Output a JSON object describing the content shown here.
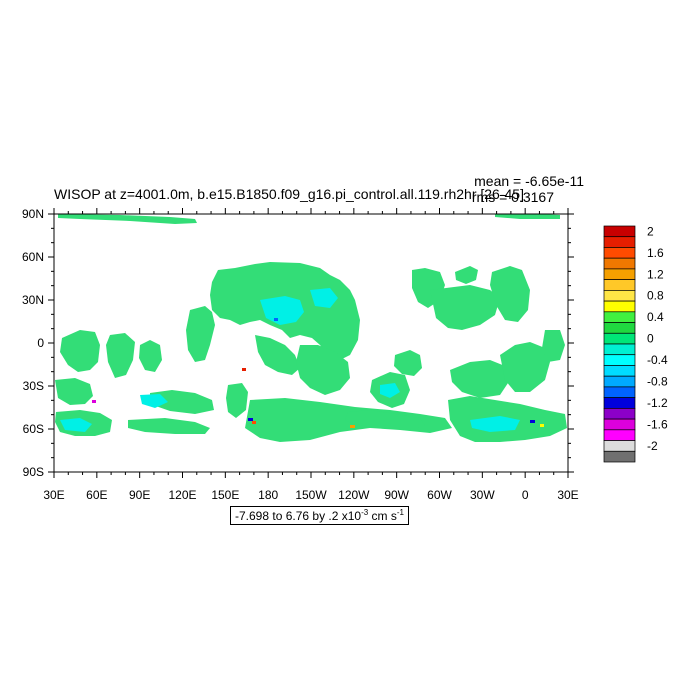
{
  "figure": {
    "title": "WISOP at z=4001.0m, b.e15.B1850.f09_g16.pi_control.all.119.rh2hr [26-45]",
    "mean_label": "mean = -6.65e-11",
    "rms_label": "rms = 0.3167",
    "range_prefix": "-7.698 to 6.76 by .2 x10",
    "range_exponent": "-3",
    "range_units": " cm s",
    "range_units_exponent": "-1"
  },
  "map": {
    "projection": "cylindrical-equidistant",
    "lon_range": [
      30,
      390
    ],
    "lat_range": [
      -90,
      90
    ],
    "lon_ticks": [
      "30E",
      "60E",
      "90E",
      "120E",
      "150E",
      "180",
      "150W",
      "120W",
      "90W",
      "60W",
      "30W",
      "0",
      "30E"
    ],
    "lat_ticks": [
      "90N",
      "60N",
      "30N",
      "0",
      "30S",
      "60S",
      "90S"
    ],
    "background": "#ffffff",
    "dominant_colors": [
      "#33dd77",
      "#00f0e6"
    ]
  },
  "colorbar": {
    "labels": [
      "2",
      "1.6",
      "1.2",
      "0.8",
      "0.4",
      "0",
      "-0.4",
      "-0.8",
      "-1.2",
      "-1.6",
      "-2"
    ],
    "colors": [
      "#c80000",
      "#e61e00",
      "#ff4b00",
      "#f07800",
      "#f5a000",
      "#ffc828",
      "#ffe646",
      "#ffff00",
      "#40f040",
      "#20d840",
      "#00e678",
      "#00f0d2",
      "#00ffff",
      "#00dcff",
      "#00aaff",
      "#0064ff",
      "#0000dc",
      "#8c00c8",
      "#dc00dc",
      "#ff00ff",
      "#dcdcdc",
      "#707070"
    ]
  }
}
